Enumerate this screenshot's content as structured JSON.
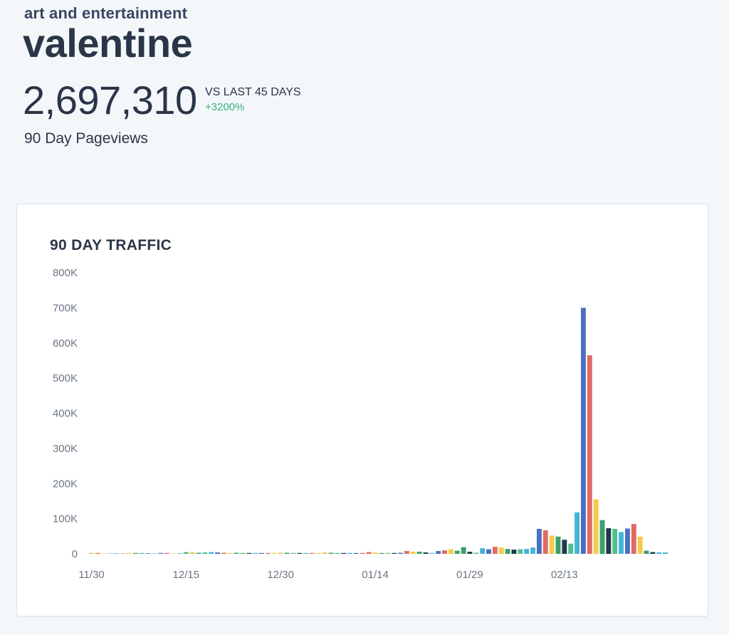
{
  "header": {
    "category": "art and entertainment",
    "term": "valentine",
    "total": "2,697,310",
    "compare_label": "VS LAST 45 DAYS",
    "compare_change": "+3200%",
    "metric_label": "90 Day Pageviews"
  },
  "card": {
    "title": "90 DAY TRAFFIC"
  },
  "colors": {
    "palette": [
      "#e8c547",
      "#e06b66",
      "#f5c842",
      "#45b4d6",
      "#4b6fc0",
      "#e06a63",
      "#f7c948",
      "#3aa06a",
      "#4ec08a",
      "#1e3a4c",
      "#45b4d6"
    ],
    "positive": "#3ab07a"
  },
  "chart_data": {
    "type": "bar",
    "title": "90 DAY TRAFFIC",
    "ylim": [
      0,
      800000
    ],
    "y_ticks": [
      "0",
      "100K",
      "200K",
      "300K",
      "400K",
      "500K",
      "600K",
      "700K",
      "800K"
    ],
    "x_tick_labels": [
      "11/30",
      "12/15",
      "12/30",
      "01/14",
      "01/29",
      "02/13"
    ],
    "x_tick_indices": [
      0,
      15,
      30,
      45,
      60,
      75
    ],
    "grid": false,
    "legend": "none",
    "values": [
      1000,
      1000,
      0,
      0,
      0,
      0,
      1000,
      500,
      500,
      0,
      0,
      500,
      300,
      0,
      0,
      5000,
      4000,
      3000,
      4000,
      5000,
      4000,
      3000,
      2000,
      3000,
      2000,
      500,
      500,
      1000,
      1000,
      2000,
      3000,
      3000,
      2000,
      1000,
      1000,
      2000,
      2000,
      4000,
      3000,
      2000,
      2000,
      1000,
      2000,
      2000,
      5000,
      4000,
      2000,
      1000,
      1000,
      3000,
      8000,
      6000,
      6000,
      4000,
      2000,
      8000,
      10000,
      13000,
      9000,
      19000,
      6000,
      3000,
      16000,
      13000,
      20000,
      18000,
      14000,
      12000,
      13000,
      14000,
      18000,
      71000,
      67000,
      52000,
      49000,
      40000,
      29000,
      118000,
      700000,
      565000,
      155000,
      96000,
      73000,
      71000,
      62000,
      72000,
      85000,
      49000,
      9000,
      5000,
      4000,
      4000
    ],
    "colors": [
      "#e8c547",
      "#e06b66",
      "#f5c842",
      "#45b4d6",
      "#4b6fc0",
      "#e06a63",
      "#f7c948",
      "#3aa06a",
      "#4ec08a",
      "#1e3a4c",
      "#45b4d6",
      "#4b6fc0",
      "#e06a63",
      "#f7c948",
      "#3aa06a",
      "#4ec08a",
      "#e8c547",
      "#3aa06a",
      "#4ec08a",
      "#45b4d6",
      "#4b6fc0",
      "#e06a63",
      "#f7c948",
      "#3aa06a",
      "#4ec08a",
      "#1e3a4c",
      "#45b4d6",
      "#4b6fc0",
      "#e06a63",
      "#f7c948",
      "#e8c547",
      "#3aa06a",
      "#4ec08a",
      "#1e3a4c",
      "#45b4d6",
      "#e06a63",
      "#f7c948",
      "#f7c948",
      "#3aa06a",
      "#4ec08a",
      "#1e3a4c",
      "#45b4d6",
      "#4b6fc0",
      "#e06a63",
      "#e06a63",
      "#f7c948",
      "#3aa06a",
      "#4ec08a",
      "#1e3a4c",
      "#4b6fc0",
      "#e06a63",
      "#f7c948",
      "#3aa06a",
      "#1e3a4c",
      "#45b4d6",
      "#4b6fc0",
      "#e06a63",
      "#f7c948",
      "#3aa06a",
      "#3aa06a",
      "#1e3a4c",
      "#4ec08a",
      "#45b4d6",
      "#4b6fc0",
      "#e06a63",
      "#f7c948",
      "#3aa06a",
      "#1e3a4c",
      "#4ec08a",
      "#45b4d6",
      "#45b4d6",
      "#4b6fc0",
      "#e06a63",
      "#f7c948",
      "#3aa06a",
      "#1e3a4c",
      "#4ec08a",
      "#45b4d6",
      "#4b6fc0",
      "#e06a63",
      "#f7c948",
      "#3aa06a",
      "#1e3a4c",
      "#4ec08a",
      "#45b4d6",
      "#4b6fc0",
      "#e06a63",
      "#f7c948",
      "#3aa06a",
      "#1e3a4c",
      "#45b4d6",
      "#45b4d6"
    ]
  }
}
